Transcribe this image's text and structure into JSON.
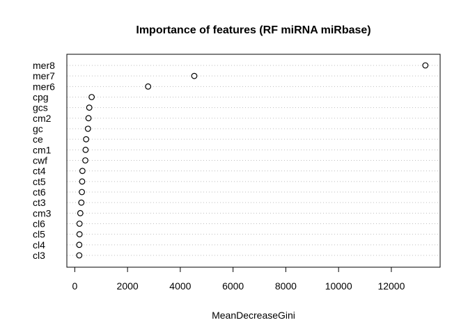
{
  "chart_data": {
    "type": "scatter",
    "title": "Importance of features (RF miRNA miRbase)",
    "xlabel": "MeanDecreaseGini",
    "ylabel": "",
    "xlim": [
      -300,
      13850
    ],
    "x_ticks": [
      0,
      2000,
      4000,
      6000,
      8000,
      10000,
      12000
    ],
    "grid": "horizontal dotted",
    "categories": [
      "mer8",
      "mer7",
      "mer6",
      "cpg",
      "gcs",
      "cm2",
      "gc",
      "ce",
      "cm1",
      "cwf",
      "ct4",
      "ct5",
      "ct6",
      "ct3",
      "cm3",
      "cl6",
      "cl5",
      "cl4",
      "cl3"
    ],
    "values": [
      13290,
      4530,
      2780,
      640,
      550,
      520,
      500,
      430,
      410,
      400,
      290,
      280,
      270,
      250,
      210,
      180,
      180,
      170,
      170
    ]
  }
}
